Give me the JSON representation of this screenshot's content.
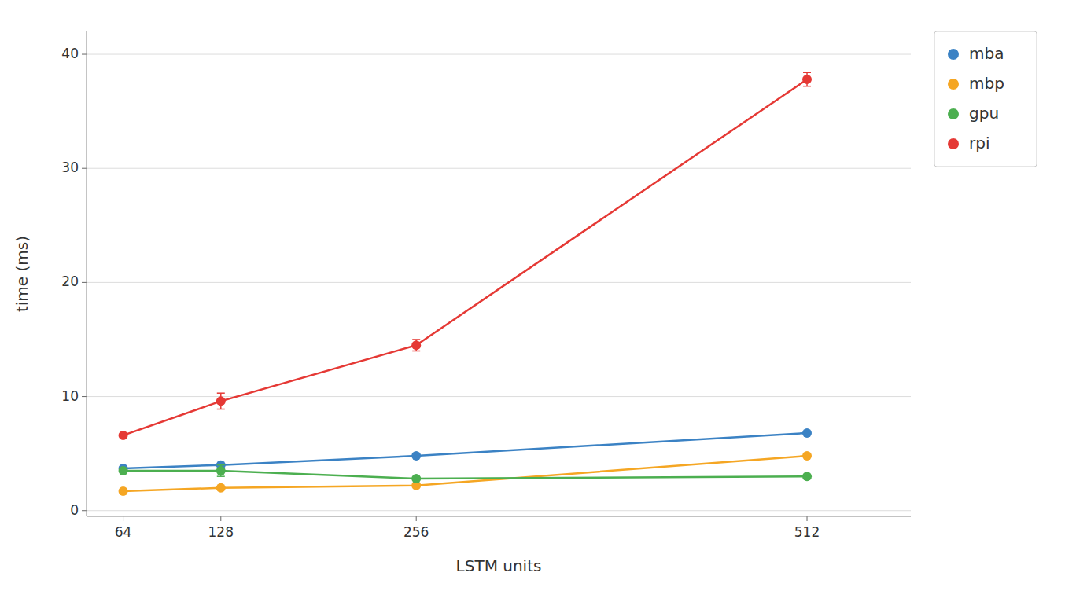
{
  "chart_data": {
    "type": "line",
    "xlabel": "LSTM units",
    "ylabel": "time (ms)",
    "x": [
      64,
      128,
      256,
      512
    ],
    "series": [
      {
        "name": "mba",
        "color": "#3b82c4",
        "values": [
          3.7,
          4.0,
          4.8,
          6.8
        ],
        "errors": [
          0.1,
          0.1,
          0.1,
          0.15
        ]
      },
      {
        "name": "mbp",
        "color": "#f5a623",
        "values": [
          1.7,
          2.0,
          2.2,
          4.8
        ],
        "errors": [
          0.1,
          0.1,
          0.1,
          0.1
        ]
      },
      {
        "name": "gpu",
        "color": "#4caf50",
        "values": [
          3.5,
          3.5,
          2.8,
          3.0
        ],
        "errors": [
          0.1,
          0.5,
          0.1,
          0.1
        ]
      },
      {
        "name": "rpi",
        "color": "#e53935",
        "values": [
          6.6,
          9.6,
          14.5,
          37.8
        ],
        "errors": [
          0.1,
          0.7,
          0.5,
          0.6
        ]
      }
    ],
    "xlim": [
      40,
      580
    ],
    "ylim": [
      -0.5,
      42
    ],
    "xticks": [
      64,
      128,
      256,
      512
    ],
    "yticks": [
      0,
      10,
      20,
      30,
      40
    ],
    "grid": "y",
    "legend": "right",
    "marker": "circle"
  }
}
